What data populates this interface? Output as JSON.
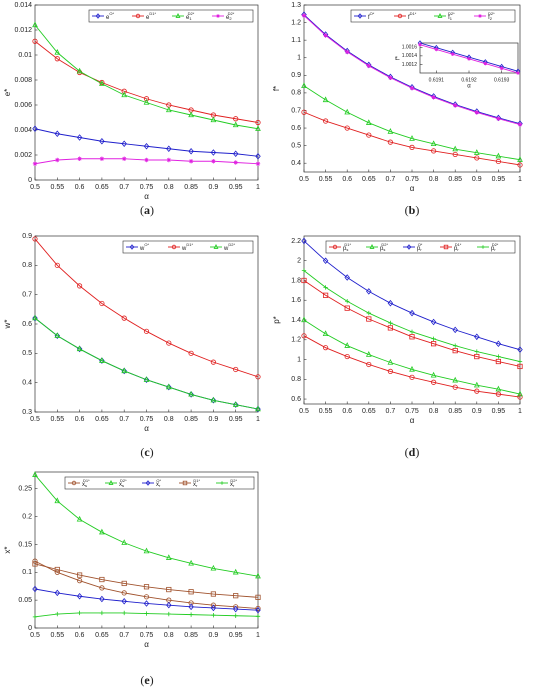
{
  "chart_data": [
    {
      "type": "line",
      "caption": "a",
      "ylabel": "e*",
      "xlabel": "α",
      "legend": "upper right",
      "x": [
        0.5,
        0.55,
        0.6,
        0.65,
        0.7,
        0.75,
        0.8,
        0.85,
        0.9,
        0.95,
        1
      ],
      "xlim": [
        0.5,
        1
      ],
      "xticks": [
        0.5,
        0.55,
        0.6,
        0.65,
        0.7,
        0.75,
        0.8,
        0.85,
        0.9,
        0.95,
        1
      ],
      "ylim": [
        0,
        0.014
      ],
      "yticks": [
        0,
        0.002,
        0.004,
        0.006,
        0.008,
        0.01,
        0.012,
        0.014
      ],
      "series": [
        {
          "name": "e",
          "sup": "O*",
          "color": "#1f1fcc",
          "marker": "diamond",
          "values": [
            0.0041,
            0.0037,
            0.0034,
            0.0031,
            0.0029,
            0.0027,
            0.0025,
            0.0023,
            0.0022,
            0.0021,
            0.0019
          ]
        },
        {
          "name": "e",
          "sup": "D1*",
          "color": "#e02020",
          "marker": "circle",
          "values": [
            0.0111,
            0.0097,
            0.0086,
            0.0078,
            0.0071,
            0.0065,
            0.006,
            0.0056,
            0.0052,
            0.0049,
            0.0046
          ]
        },
        {
          "name": "e",
          "sub": "1",
          "sup": "D2*",
          "color": "#22cc22",
          "marker": "triangle",
          "values": [
            0.0124,
            0.0102,
            0.0087,
            0.0077,
            0.0068,
            0.0062,
            0.0056,
            0.0052,
            0.0048,
            0.0044,
            0.0041
          ]
        },
        {
          "name": "e",
          "sub": "2",
          "sup": "D2*",
          "color": "#e020e0",
          "marker": "star",
          "values": [
            0.0013,
            0.0016,
            0.0017,
            0.0017,
            0.0017,
            0.0016,
            0.0016,
            0.0015,
            0.0015,
            0.0014,
            0.0013
          ]
        }
      ]
    },
    {
      "type": "line",
      "caption": "b",
      "ylabel": "f*",
      "xlabel": "α",
      "legend": "upper right",
      "x": [
        0.5,
        0.55,
        0.6,
        0.65,
        0.7,
        0.75,
        0.8,
        0.85,
        0.9,
        0.95,
        1
      ],
      "xlim": [
        0.5,
        1
      ],
      "xticks": [
        0.5,
        0.55,
        0.6,
        0.65,
        0.7,
        0.75,
        0.8,
        0.85,
        0.9,
        0.95,
        1
      ],
      "ylim": [
        0.35,
        1.3
      ],
      "yticks": [
        0.4,
        0.5,
        0.6,
        0.7,
        0.8,
        0.9,
        1,
        1.1,
        1.2,
        1.3
      ],
      "series": [
        {
          "name": "f",
          "sup": "O*",
          "color": "#1f1fcc",
          "marker": "diamond",
          "values": [
            1.245,
            1.132,
            1.038,
            0.959,
            0.891,
            0.832,
            0.78,
            0.734,
            0.694,
            0.658,
            0.625
          ]
        },
        {
          "name": "f",
          "sup": "D1*",
          "color": "#e02020",
          "marker": "circle",
          "values": [
            0.69,
            0.64,
            0.6,
            0.56,
            0.52,
            0.49,
            0.47,
            0.45,
            0.43,
            0.41,
            0.39
          ]
        },
        {
          "name": "f",
          "sub": "1",
          "sup": "D2*",
          "color": "#22cc22",
          "marker": "triangle",
          "values": [
            0.84,
            0.76,
            0.69,
            0.63,
            0.58,
            0.54,
            0.51,
            0.48,
            0.46,
            0.44,
            0.42
          ]
        },
        {
          "name": "f",
          "sub": "2",
          "sup": "D2*",
          "color": "#e020e0",
          "marker": "star",
          "values": [
            1.24,
            1.127,
            1.033,
            0.954,
            0.886,
            0.827,
            0.775,
            0.729,
            0.689,
            0.653,
            0.62
          ]
        }
      ]
    },
    {
      "type": "inset",
      "ylabel": "f*",
      "xlabel": "α",
      "x": [
        0.61905,
        0.6191,
        0.61915,
        0.6192,
        0.61925,
        0.6193,
        0.61935
      ],
      "xlim": [
        0.61905,
        0.61935
      ],
      "xticks": [
        0.6191,
        0.6192,
        0.6193
      ],
      "ylim": [
        1.001,
        1.0017
      ],
      "yticks": [
        1.0012,
        1.0014,
        1.0016
      ],
      "series": [
        {
          "color": "#1f1fcc",
          "marker": "diamond",
          "values": [
            1.0017,
            1.00159,
            1.00148,
            1.00137,
            1.00126,
            1.00115,
            1.00104
          ]
        },
        {
          "color": "#e020e0",
          "marker": "star",
          "values": [
            1.00166,
            1.00155,
            1.00144,
            1.00133,
            1.00122,
            1.00111,
            1.001
          ]
        }
      ]
    },
    {
      "type": "line",
      "caption": "c",
      "ylabel": "w*",
      "xlabel": "α",
      "legend": "upper right",
      "x": [
        0.5,
        0.55,
        0.6,
        0.65,
        0.7,
        0.75,
        0.8,
        0.85,
        0.9,
        0.95,
        1
      ],
      "xlim": [
        0.5,
        1
      ],
      "xticks": [
        0.5,
        0.55,
        0.6,
        0.65,
        0.7,
        0.75,
        0.8,
        0.85,
        0.9,
        0.95,
        1
      ],
      "ylim": [
        0.3,
        0.9
      ],
      "yticks": [
        0.3,
        0.4,
        0.5,
        0.6,
        0.7,
        0.8,
        0.9
      ],
      "series": [
        {
          "name": "w",
          "sup": "O*",
          "color": "#1f1fcc",
          "marker": "diamond",
          "values": [
            0.62,
            0.56,
            0.515,
            0.475,
            0.44,
            0.41,
            0.385,
            0.36,
            0.34,
            0.325,
            0.31
          ]
        },
        {
          "name": "w",
          "sup": "D1*",
          "color": "#e02020",
          "marker": "circle",
          "values": [
            0.89,
            0.8,
            0.73,
            0.67,
            0.62,
            0.575,
            0.535,
            0.5,
            0.47,
            0.445,
            0.42
          ]
        },
        {
          "name": "w",
          "sup": "D2*",
          "color": "#22cc22",
          "marker": "triangle",
          "values": [
            0.62,
            0.56,
            0.515,
            0.475,
            0.44,
            0.41,
            0.385,
            0.36,
            0.34,
            0.325,
            0.31
          ]
        }
      ]
    },
    {
      "type": "line",
      "caption": "d",
      "ylabel": "p*",
      "xlabel": "α",
      "legend": "upper right",
      "x": [
        0.5,
        0.55,
        0.6,
        0.65,
        0.7,
        0.75,
        0.8,
        0.85,
        0.9,
        0.95,
        1
      ],
      "xlim": [
        0.5,
        1
      ],
      "xticks": [
        0.5,
        0.55,
        0.6,
        0.65,
        0.7,
        0.75,
        0.8,
        0.85,
        0.9,
        0.95,
        1
      ],
      "ylim": [
        0.55,
        2.25
      ],
      "yticks": [
        0.6,
        0.8,
        1,
        1.2,
        1.4,
        1.6,
        1.8,
        2,
        2.2
      ],
      "series": [
        {
          "name": "p",
          "sub": "s",
          "sup": "D1*",
          "color": "#e02020",
          "marker": "circle",
          "values": [
            1.24,
            1.12,
            1.03,
            0.95,
            0.88,
            0.82,
            0.77,
            0.72,
            0.68,
            0.65,
            0.62
          ]
        },
        {
          "name": "p",
          "sub": "s",
          "sup": "D2*",
          "color": "#22cc22",
          "marker": "triangle",
          "values": [
            1.4,
            1.26,
            1.14,
            1.05,
            0.97,
            0.9,
            0.84,
            0.79,
            0.74,
            0.7,
            0.65
          ]
        },
        {
          "name": "p",
          "sub": "r",
          "sup": "O*",
          "color": "#1f1fcc",
          "marker": "diamond",
          "values": [
            2.2,
            2,
            1.83,
            1.69,
            1.57,
            1.47,
            1.38,
            1.3,
            1.23,
            1.16,
            1.1
          ]
        },
        {
          "name": "p",
          "sub": "r",
          "sup": "D1*",
          "color": "#e02020",
          "marker": "square",
          "values": [
            1.8,
            1.65,
            1.52,
            1.41,
            1.32,
            1.23,
            1.16,
            1.09,
            1.03,
            0.98,
            0.93
          ]
        },
        {
          "name": "p",
          "sub": "r",
          "sup": "D2*",
          "color": "#22cc22",
          "marker": "plus",
          "values": [
            1.9,
            1.73,
            1.59,
            1.47,
            1.37,
            1.28,
            1.21,
            1.14,
            1.08,
            1.03,
            0.98
          ]
        }
      ]
    },
    {
      "type": "line",
      "caption": "e",
      "ylabel": "x*",
      "xlabel": "α",
      "legend": "upper left",
      "x": [
        0.5,
        0.55,
        0.6,
        0.65,
        0.7,
        0.75,
        0.8,
        0.85,
        0.9,
        0.95,
        1
      ],
      "xlim": [
        0.5,
        1
      ],
      "xticks": [
        0.5,
        0.55,
        0.6,
        0.65,
        0.7,
        0.75,
        0.8,
        0.85,
        0.9,
        0.95,
        1
      ],
      "ylim": [
        0,
        0.28
      ],
      "yticks": [
        0,
        0.05,
        0.1,
        0.15,
        0.2,
        0.25
      ],
      "series": [
        {
          "name": "x",
          "sub": "s",
          "sup": "D1*",
          "color": "#a0522d",
          "marker": "circle",
          "values": [
            0.12,
            0.1,
            0.085,
            0.072,
            0.063,
            0.056,
            0.05,
            0.045,
            0.041,
            0.038,
            0.035
          ]
        },
        {
          "name": "x",
          "sub": "s",
          "sup": "D2*",
          "color": "#22cc22",
          "marker": "triangle",
          "values": [
            0.275,
            0.228,
            0.195,
            0.172,
            0.153,
            0.138,
            0.126,
            0.116,
            0.107,
            0.1,
            0.093
          ]
        },
        {
          "name": "x",
          "sub": "r",
          "sup": "O*",
          "color": "#1f1fcc",
          "marker": "diamond",
          "values": [
            0.07,
            0.063,
            0.057,
            0.052,
            0.048,
            0.044,
            0.041,
            0.038,
            0.036,
            0.034,
            0.032
          ]
        },
        {
          "name": "x",
          "sub": "r",
          "sup": "D1*",
          "color": "#a0522d",
          "marker": "square",
          "values": [
            0.115,
            0.105,
            0.095,
            0.087,
            0.08,
            0.074,
            0.069,
            0.065,
            0.061,
            0.058,
            0.055
          ]
        },
        {
          "name": "x",
          "sub": "r",
          "sup": "D2*",
          "color": "#22cc22",
          "marker": "plus",
          "values": [
            0.02,
            0.025,
            0.027,
            0.027,
            0.027,
            0.026,
            0.025,
            0.024,
            0.023,
            0.022,
            0.021
          ]
        }
      ]
    }
  ]
}
